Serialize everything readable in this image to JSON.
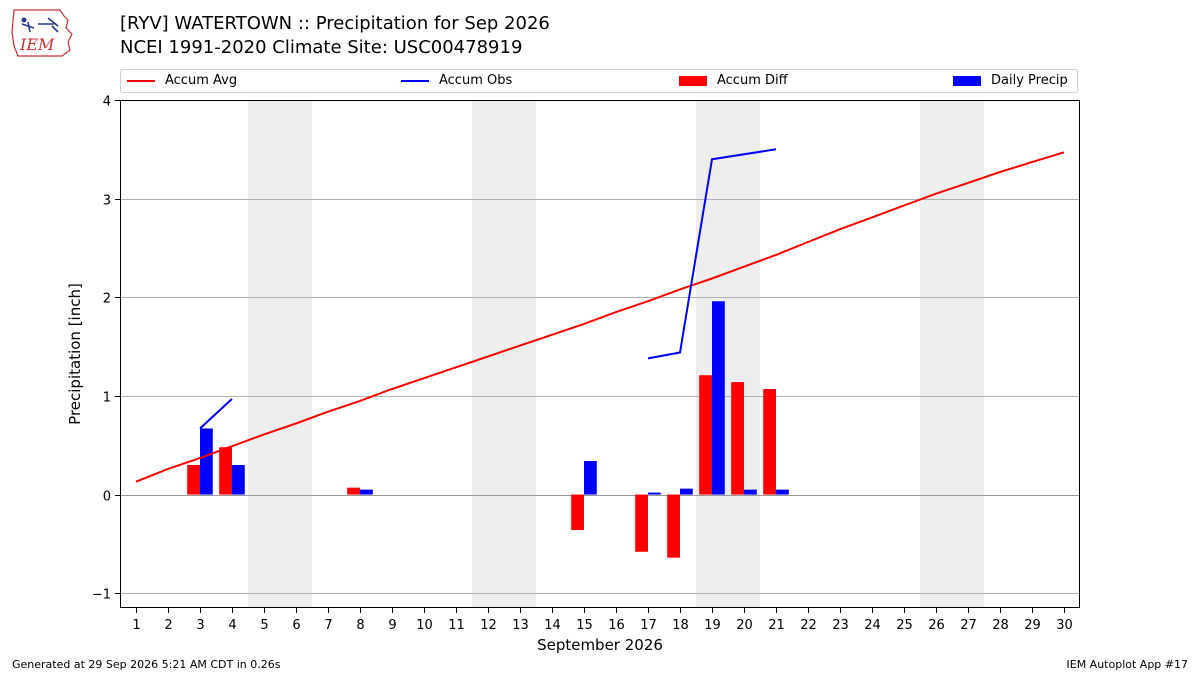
{
  "header": {
    "logo_text": "IEM",
    "title_line1": "[RYV] WATERTOWN :: Precipitation for Sep 2026",
    "title_line2": "NCEI 1991-2020 Climate Site: USC00478919"
  },
  "footer": {
    "generated": "Generated at 29 Sep 2026 5:21 AM CDT in 0.26s",
    "app": "IEM Autoplot App #17"
  },
  "colors": {
    "avg": "#ff0000",
    "obs": "#0000ff",
    "diff": "#ff0000",
    "daily": "#0000ff",
    "weekend": "#eeeeee",
    "grid": "#b0b0b0"
  },
  "chart_data": {
    "type": "bar",
    "xlabel": "September 2026",
    "ylabel": "Precipitation [inch]",
    "ylim": [
      -1.15,
      4.0
    ],
    "yticks": [
      -1,
      0,
      1,
      2,
      3,
      4
    ],
    "x": [
      1,
      2,
      3,
      4,
      5,
      6,
      7,
      8,
      9,
      10,
      11,
      12,
      13,
      14,
      15,
      16,
      17,
      18,
      19,
      20,
      21,
      22,
      23,
      24,
      25,
      26,
      27,
      28,
      29,
      30
    ],
    "grid": "horizontal",
    "legend_placement": "top",
    "weekend_days": [
      5,
      6,
      12,
      13,
      19,
      20,
      26,
      27
    ],
    "series": [
      {
        "name": "Accum Avg",
        "kind": "line",
        "x": [
          1,
          2,
          3,
          4,
          5,
          6,
          7,
          8,
          9,
          10,
          11,
          12,
          13,
          14,
          15,
          16,
          17,
          18,
          19,
          20,
          21,
          22,
          23,
          24,
          25,
          26,
          27,
          28,
          29,
          30
        ],
        "values": [
          0.13,
          0.26,
          0.37,
          0.49,
          0.61,
          0.72,
          0.84,
          0.95,
          1.07,
          1.18,
          1.29,
          1.4,
          1.51,
          1.62,
          1.73,
          1.85,
          1.96,
          2.08,
          2.19,
          2.31,
          2.43,
          2.56,
          2.69,
          2.81,
          2.93,
          3.05,
          3.16,
          3.27,
          3.37,
          3.47
        ]
      },
      {
        "name": "Accum Obs",
        "kind": "line",
        "segments": [
          {
            "x": [
              3,
              4
            ],
            "values": [
              0.67,
              0.97
            ]
          },
          {
            "x": [
              17,
              18,
              19,
              21
            ],
            "values": [
              1.38,
              1.44,
              3.4,
              3.5
            ]
          }
        ]
      },
      {
        "name": "Accum Diff",
        "kind": "bar",
        "x": [
          3,
          4,
          8,
          15,
          17,
          18,
          19,
          20,
          21
        ],
        "values": [
          0.3,
          0.48,
          0.07,
          -0.36,
          -0.58,
          -0.64,
          1.21,
          1.14,
          1.07
        ]
      },
      {
        "name": "Daily Precip",
        "kind": "bar",
        "x": [
          3,
          4,
          8,
          15,
          17,
          18,
          19,
          20,
          21
        ],
        "values": [
          0.67,
          0.3,
          0.05,
          0.34,
          0.02,
          0.06,
          1.96,
          0.05,
          0.05
        ]
      }
    ]
  }
}
